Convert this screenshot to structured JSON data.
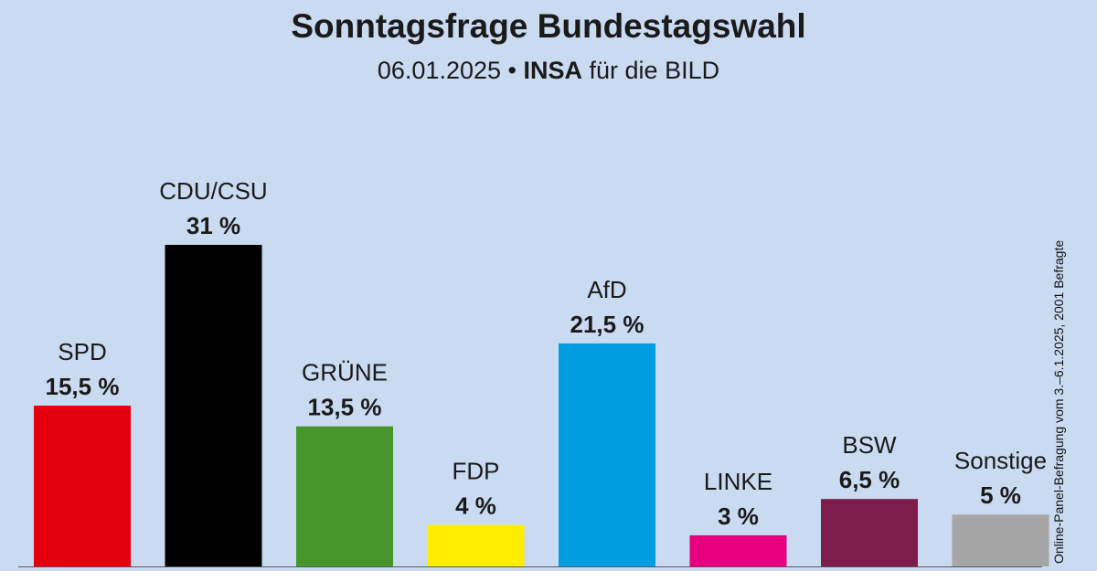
{
  "chart_data": {
    "type": "bar",
    "title": "Sonntagsfrage Bundestagswahl",
    "subtitle": {
      "date": "06.01.2025",
      "separator": "•",
      "institute": "INSA",
      "client": "für die BILD"
    },
    "source_note": "Online-Panel-Befragung vom 3.–6.1.2025, 2001 Befragte",
    "categories": [
      "SPD",
      "CDU/CSU",
      "GRÜNE",
      "FDP",
      "AfD",
      "LINKE",
      "BSW",
      "Sonstige"
    ],
    "values": [
      15.5,
      31,
      13.5,
      4,
      21.5,
      3,
      6.5,
      5
    ],
    "value_labels": [
      "15,5 %",
      "31 %",
      "13,5 %",
      "4 %",
      "21,5 %",
      "3 %",
      "6,5 %",
      "5 %"
    ],
    "colors": [
      "#e3000f",
      "#000000",
      "#46962b",
      "#ffed00",
      "#009ee0",
      "#e6007e",
      "#7d1d4b",
      "#a6a6a6"
    ],
    "ylim": [
      0,
      31
    ],
    "grid": false,
    "legend": "none"
  }
}
